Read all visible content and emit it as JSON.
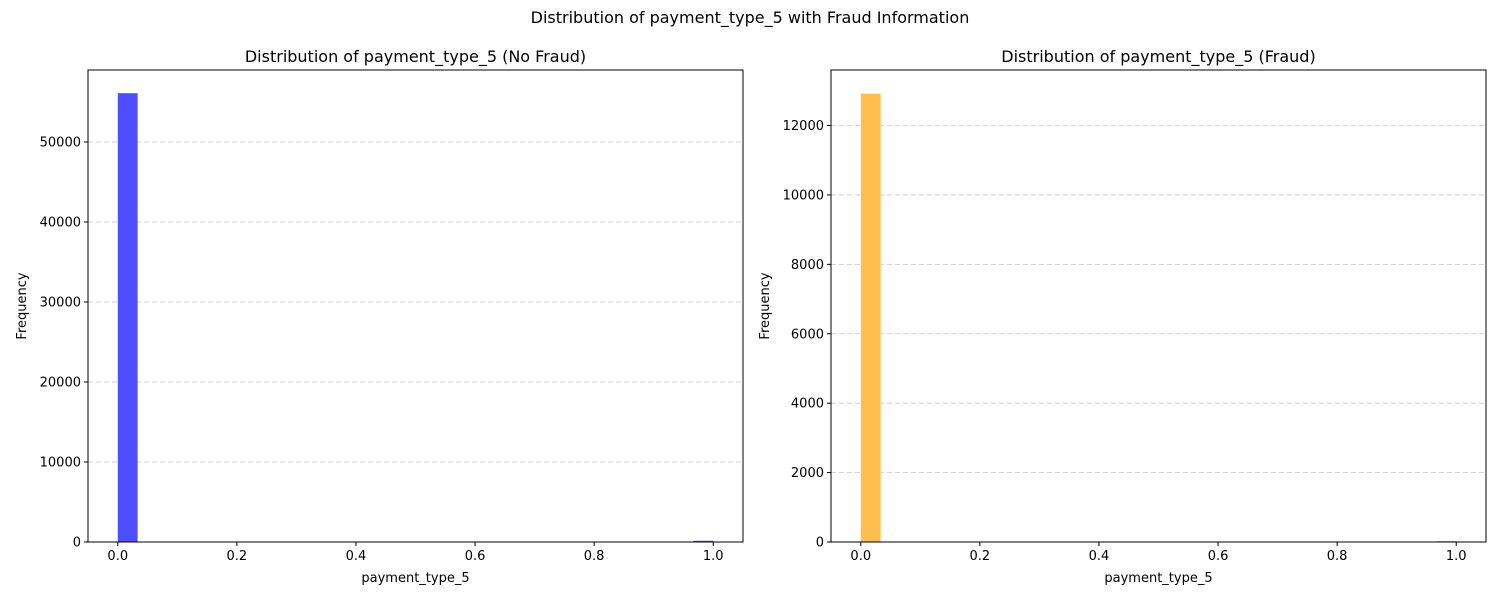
{
  "figure": {
    "suptitle": "Distribution of payment_type_5 with Fraud Information"
  },
  "chart_data": [
    {
      "type": "bar",
      "title": "Distribution of payment_type_5 (No Fraud)",
      "xlabel": "payment_type_5",
      "ylabel": "Frequency",
      "color": "#4444ff",
      "xlim": [
        -0.05,
        1.05
      ],
      "ylim": [
        0,
        59000
      ],
      "xticks": [
        0.0,
        0.2,
        0.4,
        0.6,
        0.8,
        1.0
      ],
      "xtick_labels": [
        "0.0",
        "0.2",
        "0.4",
        "0.6",
        "0.8",
        "1.0"
      ],
      "yticks": [
        0,
        10000,
        20000,
        30000,
        40000,
        50000
      ],
      "ytick_labels": [
        "0",
        "10000",
        "20000",
        "30000",
        "40000",
        "50000"
      ],
      "grid": "y-dashed",
      "bins": [
        {
          "x0": 0.0,
          "x1": 0.0333,
          "value": 56100
        },
        {
          "x0": 0.9667,
          "x1": 1.0,
          "value": 150
        }
      ]
    },
    {
      "type": "bar",
      "title": "Distribution of payment_type_5 (Fraud)",
      "xlabel": "payment_type_5",
      "ylabel": "Frequency",
      "color": "#ffbb44",
      "xlim": [
        -0.05,
        1.05
      ],
      "ylim": [
        0,
        13600
      ],
      "xticks": [
        0.0,
        0.2,
        0.4,
        0.6,
        0.8,
        1.0
      ],
      "xtick_labels": [
        "0.0",
        "0.2",
        "0.4",
        "0.6",
        "0.8",
        "1.0"
      ],
      "yticks": [
        0,
        2000,
        4000,
        6000,
        8000,
        10000,
        12000
      ],
      "ytick_labels": [
        "0",
        "2000",
        "4000",
        "6000",
        "8000",
        "10000",
        "12000"
      ],
      "grid": "y-dashed",
      "bins": [
        {
          "x0": 0.0,
          "x1": 0.0333,
          "value": 12920
        },
        {
          "x0": 0.9667,
          "x1": 1.0,
          "value": 30
        }
      ]
    }
  ]
}
